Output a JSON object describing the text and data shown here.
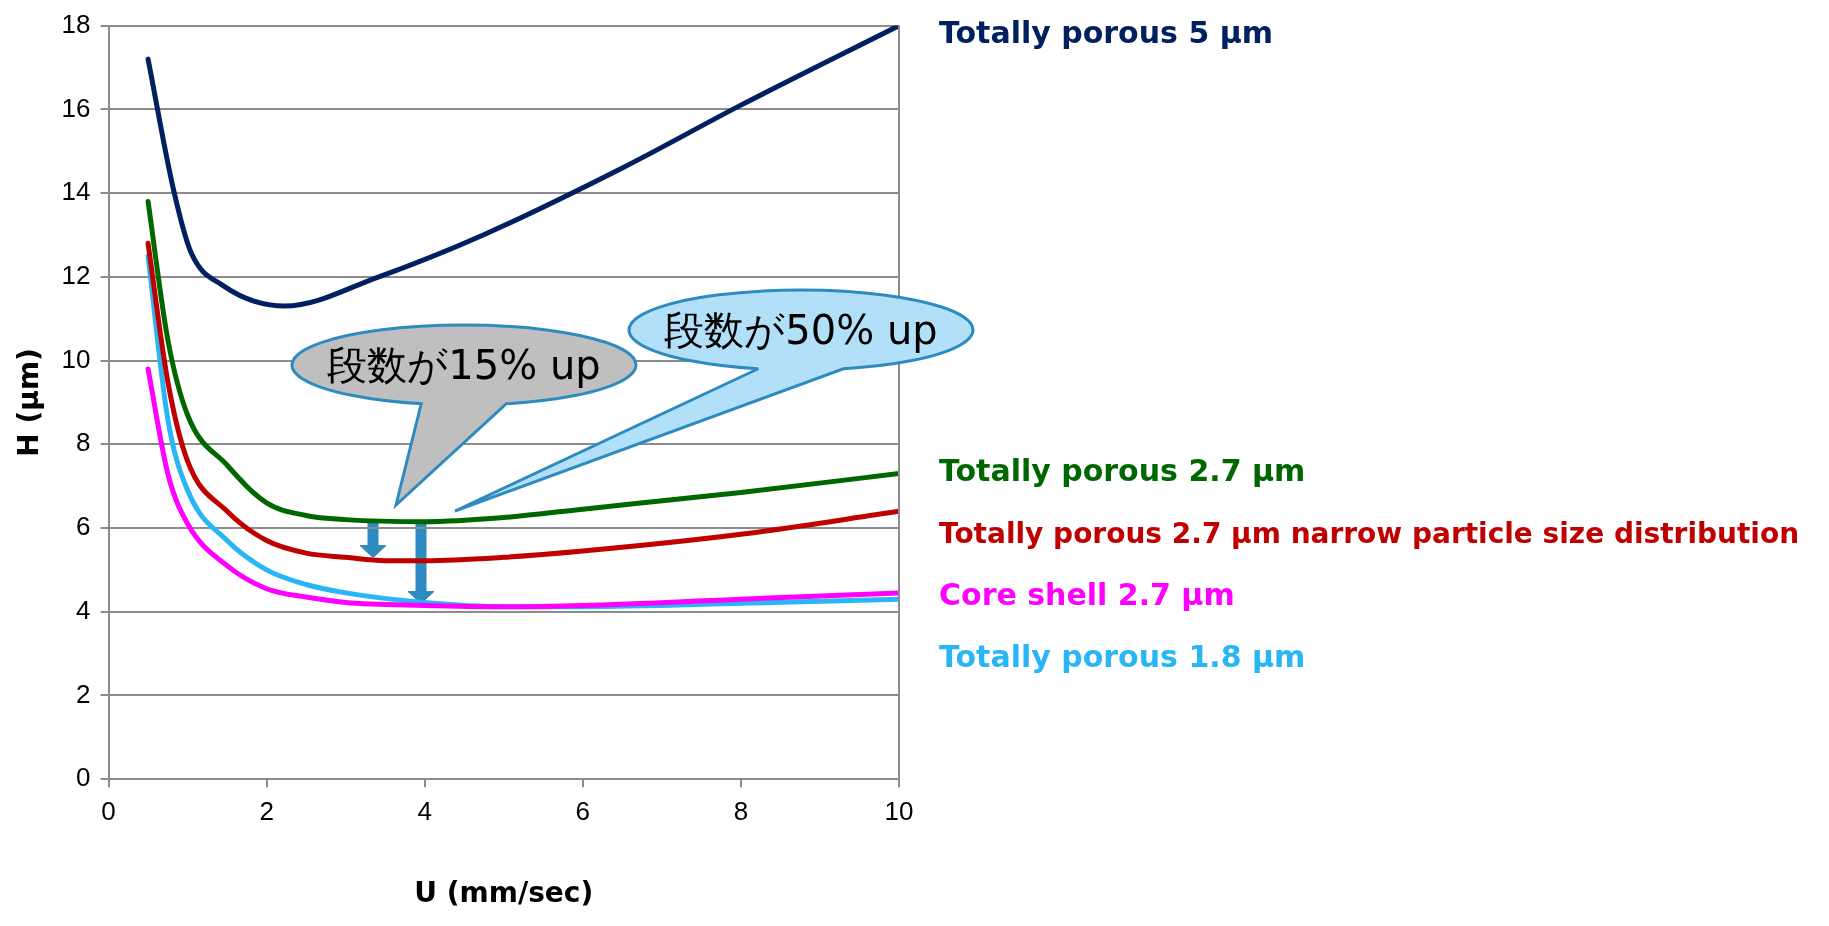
{
  "chart_data": {
    "type": "line",
    "xlabel": "U (mm/sec)",
    "ylabel": "H (μm)",
    "xlim": [
      0,
      10
    ],
    "xticks": [
      0,
      2,
      4,
      6,
      8,
      10
    ],
    "ylim": [
      0,
      18
    ],
    "yticks": [
      0,
      2,
      4,
      6,
      8,
      10,
      12,
      14,
      16,
      18
    ],
    "grid": "y",
    "legend": false,
    "marker": "none",
    "line_style": "solid",
    "series": [
      {
        "name": "Totally porous 5 μm",
        "color": "#002060",
        "x": [
          0.5,
          0.82,
          1.04,
          1.44,
          2.23,
          3.42,
          4.74,
          6.5,
          8,
          10
        ],
        "values": [
          17.2,
          14.1,
          12.6,
          11.8,
          11.3,
          12.0,
          13.0,
          14.6,
          16.1,
          18
        ]
      },
      {
        "name": "Totally porous 2.7 μm",
        "color": "#006600",
        "x": [
          0.5,
          0.75,
          1,
          1.5,
          2,
          2.5,
          3,
          4,
          5,
          6,
          8,
          10
        ],
        "values": [
          13.8,
          10.5,
          8.7,
          7.5,
          6.6,
          6.3,
          6.2,
          6.15,
          6.25,
          6.45,
          6.85,
          7.3
        ]
      },
      {
        "name": "Totally porous 2.7 μm narrow particle size distribution",
        "color": "#c00000",
        "x": [
          0.5,
          0.75,
          1,
          1.5,
          2,
          2.5,
          3,
          3.5,
          4,
          5,
          6,
          8,
          10
        ],
        "values": [
          12.8,
          9.5,
          7.6,
          6.4,
          5.7,
          5.4,
          5.3,
          5.22,
          5.22,
          5.3,
          5.45,
          5.85,
          6.4
        ]
      },
      {
        "name": "Core shell 2.7 μm",
        "color": "#ff00ff",
        "x": [
          0.5,
          0.75,
          1,
          1.5,
          2,
          2.5,
          3,
          4,
          5,
          6,
          8,
          10
        ],
        "values": [
          9.8,
          7.3,
          6.1,
          5.1,
          4.55,
          4.35,
          4.22,
          4.15,
          4.12,
          4.15,
          4.3,
          4.45
        ]
      },
      {
        "name": "Totally porous 1.8 μm",
        "color": "#29b6f6",
        "x": [
          0.5,
          0.75,
          1,
          1.5,
          2,
          2.5,
          3,
          4,
          5,
          6,
          8,
          10
        ],
        "values": [
          12.5,
          8.6,
          6.9,
          5.7,
          5.0,
          4.65,
          4.45,
          4.22,
          4.12,
          4.12,
          4.2,
          4.3
        ]
      }
    ],
    "annotations": [
      "段数が15% up",
      "段数が50% up"
    ]
  }
}
